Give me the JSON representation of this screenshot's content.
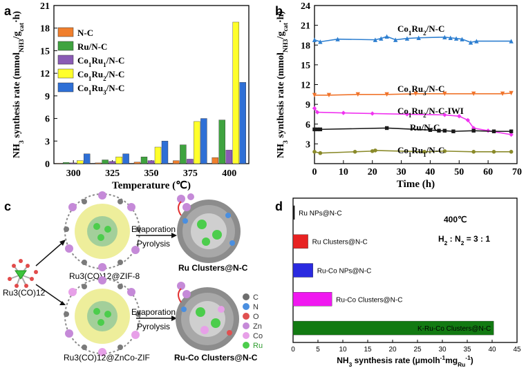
{
  "panels": {
    "a": "a",
    "b": "b",
    "c": "c",
    "d": "d"
  },
  "chart_data": [
    {
      "id": "a",
      "type": "bar",
      "ylabel": "NH3 synthesis rate (mmolNH3/gcat·h)",
      "xlabel": "Temperature (℃)",
      "categories": [
        "300",
        "325",
        "350",
        "375",
        "400"
      ],
      "ylim": [
        0,
        21
      ],
      "yticks": [
        0,
        3,
        6,
        9,
        12,
        15,
        18,
        21
      ],
      "legend_position": "top-left",
      "series": [
        {
          "name": "N-C",
          "color": "#f07f2d",
          "values": [
            0.05,
            0.1,
            0.2,
            0.4,
            0.8
          ]
        },
        {
          "name": "Ru/N-C",
          "color": "#3fa33f",
          "values": [
            0.15,
            0.5,
            0.9,
            2.5,
            5.8
          ]
        },
        {
          "name": "Co1Ru1/N-C",
          "color": "#8a5bb5",
          "values": [
            0.1,
            0.3,
            0.4,
            0.6,
            1.8
          ]
        },
        {
          "name": "Co1Ru2/N-C",
          "color": "#ffff2a",
          "values": [
            0.4,
            0.9,
            2.2,
            5.6,
            18.8
          ]
        },
        {
          "name": "Co1Ru3/N-C",
          "color": "#2e6fd6",
          "values": [
            1.3,
            1.3,
            3.0,
            6.0,
            10.8
          ]
        }
      ]
    },
    {
      "id": "b",
      "type": "line",
      "ylabel": "NH3 synthesis rate (mmolNH3/gcat·h)",
      "xlabel": "Time (h)",
      "xlim": [
        0,
        70
      ],
      "xticks": [
        0,
        10,
        20,
        30,
        40,
        50,
        60,
        70
      ],
      "ylim": [
        0,
        24
      ],
      "yticks": [
        3,
        6,
        9,
        12,
        15,
        18,
        21,
        24
      ],
      "series": [
        {
          "name": "Co1Ru2/N-C",
          "color": "#2e7fd0",
          "marker": "triangle-up",
          "x": [
            0,
            2,
            8,
            21,
            23,
            25,
            28,
            32,
            36,
            45,
            47,
            49,
            51,
            54,
            56,
            68
          ],
          "y": [
            18.8,
            18.5,
            18.9,
            18.8,
            19.0,
            19.3,
            18.8,
            19.0,
            19.1,
            19.2,
            19.1,
            19.0,
            18.9,
            18.4,
            18.6,
            18.6
          ]
        },
        {
          "name": "Co1Ru3/N-C",
          "color": "#f0732a",
          "marker": "triangle-down",
          "x": [
            0,
            5,
            15,
            25,
            35,
            45,
            55,
            65,
            68
          ],
          "y": [
            10.4,
            10.4,
            10.5,
            10.5,
            10.6,
            10.6,
            10.6,
            10.6,
            10.7
          ]
        },
        {
          "name": "Co1Ru2/N-C-IWI",
          "color": "#f033f0",
          "marker": "diamond",
          "x": [
            0,
            1,
            10,
            20,
            32,
            45,
            50,
            53,
            55,
            60,
            68
          ],
          "y": [
            8.4,
            7.8,
            7.7,
            7.6,
            7.5,
            7.4,
            7.2,
            6.6,
            5.4,
            5.0,
            4.4
          ]
        },
        {
          "name": "Ru/N-C",
          "color": "#1a1a1a",
          "marker": "square",
          "x": [
            0,
            1,
            2,
            25,
            40,
            43,
            45,
            48,
            55,
            62,
            68
          ],
          "y": [
            5.2,
            5.2,
            5.2,
            5.4,
            5.1,
            5.0,
            5.0,
            4.9,
            5.0,
            4.9,
            4.9
          ]
        },
        {
          "name": "Co1Ru1/N-C",
          "color": "#8a8a2a",
          "marker": "circle",
          "x": [
            0,
            2,
            14,
            20,
            21,
            38,
            45,
            55,
            62,
            68
          ],
          "y": [
            1.8,
            1.6,
            1.8,
            1.9,
            2.0,
            1.8,
            1.9,
            1.8,
            1.8,
            1.8
          ]
        }
      ]
    },
    {
      "id": "d",
      "type": "bar",
      "orientation": "horizontal",
      "xlabel": "NH3 synthesis rate (μmolh-1mgRu-1)",
      "xlim": [
        0,
        45
      ],
      "xticks": [
        0,
        5,
        10,
        15,
        20,
        25,
        30,
        35,
        40,
        45
      ],
      "categories": [
        "Ru NPs@N-C",
        "Ru Clusters@N-C",
        "Ru-Co NPs@N-C",
        "Ru-Co Clusters@N-C",
        "K-Ru-Co Clusters@N-C"
      ],
      "values": [
        0.3,
        3.0,
        4.0,
        7.8,
        40.3
      ],
      "colors": [
        "#111111",
        "#e82222",
        "#2a2ae0",
        "#f018f0",
        "#127a12"
      ],
      "annotations": [
        "400℃",
        "H2 : N2 = 3 : 1"
      ]
    }
  ],
  "schematic": {
    "precursor_label": "Ru3(CO)12",
    "top": {
      "source_label": "Ru3(CO)12@ZIF-8",
      "process_line1": "Evaporation",
      "process_line2": "Pyrolysis",
      "product_label": "Ru Clusters@N-C"
    },
    "bottom": {
      "source_label": "Ru3(CO)12@ZnCo-ZIF",
      "process_line1": "Evaporation",
      "process_line2": "Pyrolysis",
      "product_label": "Ru-Co Clusters@N-C"
    },
    "legend": [
      {
        "label": "C",
        "color": "#6e6e6e"
      },
      {
        "label": "N",
        "color": "#4a8fe0"
      },
      {
        "label": "O",
        "color": "#e05050"
      },
      {
        "label": "Zn",
        "color": "#c58ad8"
      },
      {
        "label": "Co",
        "color": "#e7a0e8"
      },
      {
        "label": "Ru",
        "color": "#4ccd4c"
      }
    ]
  }
}
